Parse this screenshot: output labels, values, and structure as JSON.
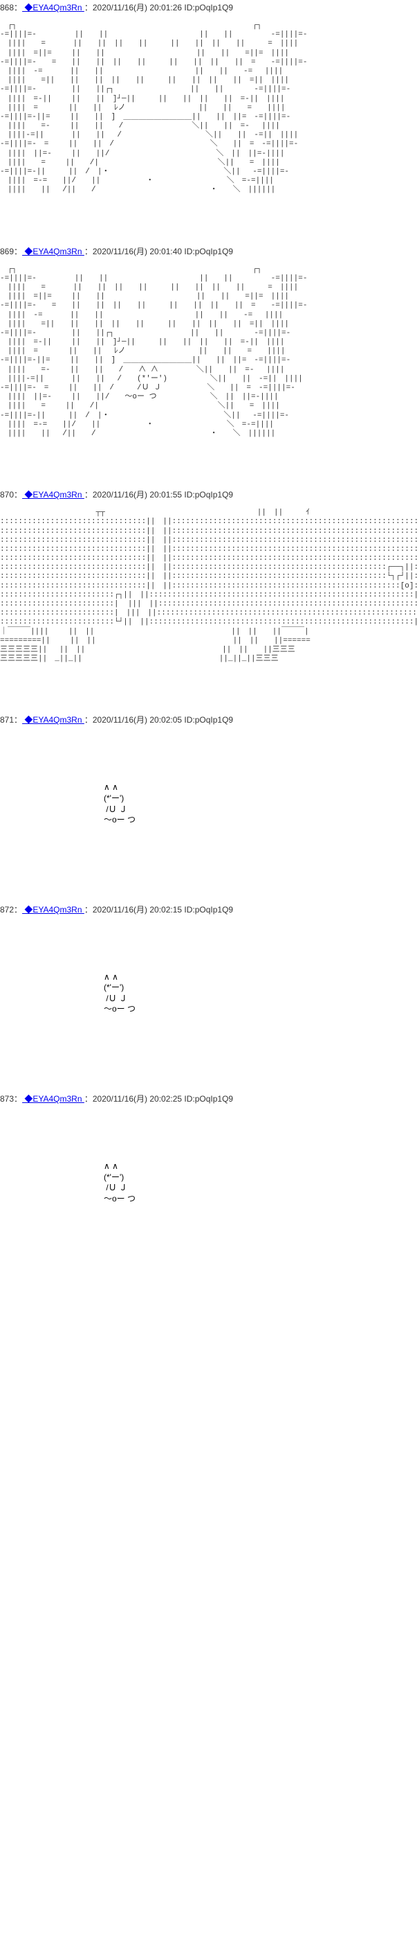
{
  "posts": [
    {
      "num": "868",
      "sep": "：",
      "trip": "◆EYA4Qm3Rn",
      "meta": "：2020/11/16(月) 20:01:26 ID:pOqIp1Q9",
      "type": "building1",
      "body": ""
    },
    {
      "num": "869",
      "sep": "：",
      "trip": "◆EYA4Qm3Rn",
      "meta": "：2020/11/16(月) 20:01:40 ID:pOqIp1Q9",
      "type": "building2",
      "body": ""
    },
    {
      "num": "870",
      "sep": "：",
      "trip": "◆EYA4Qm3Rn",
      "meta": "：2020/11/16(月) 20:01:55 ID:pOqIp1Q9",
      "type": "building3",
      "body": ""
    },
    {
      "num": "871",
      "sep": "：",
      "trip": "◆EYA4Qm3Rn",
      "meta": "：2020/11/16(月) 20:02:05 ID:pOqIp1Q9",
      "type": "cat",
      "body": "∧ ∧\n(*'ー')\n /Ｕ Ｊ\n～oー つ"
    },
    {
      "num": "872",
      "sep": "：",
      "trip": "◆EYA4Qm3Rn",
      "meta": "：2020/11/16(月) 20:02:15 ID:pOqIp1Q9",
      "type": "cat",
      "body": "∧ ∧\n(*'ー')\n /Ｕ Ｊ\n～oー つ"
    },
    {
      "num": "873",
      "sep": "：",
      "trip": "◆EYA4Qm3Rn",
      "meta": "：2020/11/16(月) 20:02:25 ID:pOqIp1Q9",
      "type": "cat",
      "body": "∧ ∧\n(*'ー')\n /Ｕ Ｊ\n～oー つ"
    }
  ],
  "aa": {
    "building1": "　┌┐　　　　　　　　　　　　　　　　　　　　　　　　　　　　　　　┌┐\n-=||||=-　　　　　||　　||　　　　　　　　　　　　||　　||　　　　　-=||||=-\n　||||　　=　　　 ||　　||　||　　||　　　||　　||　||　　||　　　=　||||\n　||||　=||=　　 ||　　||　　　　　　　　　　　　||　　||　　=||=　||||\n-=||||=-　　=　　||　　||　||　　||　　　||　　||　||　　||　=　　-=||||=-\n　||||　-=　　　 ||　　||　　　　　　　　　　　　||　　||　　-=　 ||||\n　||||　　=||　　||　　||　||　　||　　　||　　||　||　　||　=||　||||\n-=||||=-　　　　 ||　　||┌┐　　　　　　　　　　||　　||　　　　-=||||=-\n　||||　=-||　　 ||　　||　]┘─||　　　||　　||　||　　||　=-||　||||\n　||||　=　　　　||　　||　 ﾚノ　　　　　　　　　 ||　　||　　=　　||||\n-=||||=-||=　　 ||　　||　]　＿＿＿＿＿＿＿＿＿||　　||　||=　-=||||=-\n　||||　　=-　　 ||　　||　　/　　　　　　　　　＼||　　||　=-　 ||||\n　||||-=||　　　 ||　　||　 /　　　　　　　　　　　＼||　　||　-=||　||||\n-=||||=-　=　　 ||　　||　/　　　　　　　　　　　　 ＼　　||　=　-=||||=-\n　||||　||=-　　 ||　　||/　　　　　　　　　　　　　　＼　||　||=-||||\n　||||　　=　　 ||　　/|　　　　　　　　　　　　　　　 ＼||　　=　||||\n-=||||=-||　　　||　/　|・　　　　　　　　　　　　　　　＼||　 -=||||=-\n　||||　=-=　　||/　　||　　　　　　・　　　　　　　　　 ＼　=-=||||\n　||||　　||　 /||　　/　　　　　　　　　　　　　　　・　　＼　||||||",
    "building2": "　┌┐　　　　　　　　　　　　　　　　　　　　　　　　　　　　　　　┌┐\n-=||||=-　　　　　||　　||　　　　　　　　　　　　||　　||　　　　　-=||||=-\n　||||　　=　　　 ||　　||　||　　||　　　||　　||　||　　||　　　=　||||\n　||||　=||=　　 ||　　||　　　　　　　　　　　　||　　||　　=||=　||||\n-=||||=-　　=　　||　　||　||　　||　　　||　　||　||　　||　=　　-=||||=-\n　||||　-=　　　 ||　　||　　　　　　　　　　　　||　　||　　-=　 ||||\n　||||　　=||　　||　　||　||　　||　　　||　　||　||　　||　=||　||||\n-=||||=-　　　　 ||　　||┌┐　　　　　　　　　　||　　||　　　　-=||||=-\n　||||　=-||　　 ||　　||　]┘─||　　　||　　||　||　　||　=-||　||||\n　||||　=　　　　||　　||　 ﾚノ　　　　　　　　　 ||　　||　　=　　||||\n-=||||=-||=　　 ||　　||　]　＿＿＿＿＿＿＿＿＿||　　||　||=　-=||||=-\n　||||　　=-　　 ||　　||　　/　　∧ ∧　　　　　＼||　　||　=-　 ||||\n　||||-=||　　　 ||　　||　 /　　(*'ー')　　　　　 ＼||　　||　-=||　||||\n-=||||=-　=　　 ||　　||　/　　　/Ｕ Ｊ　　　　　　＼　　||　=　-=||||=-\n　||||　||=-　　 ||　　||/　　～oー つ　　　　　　　＼　||　||=-||||\n　||||　　=　　 ||　　/|　　　　　　　　　　　　　　　 ＼||　　=　||||\n-=||||=-||　　　||　/　|・　　　　　　　　　　　　　　　＼||　 -=||||=-\n　||||　=-=　　||/　　||　　　　　　・　　　　　　　　　 ＼　=-=||||\n　||||　　||　 /||　　/　　　　　　　　　　　　　　　・　　＼　||||||",
    "building3": "　　　　　　　　　　　　 ┬┬　　　　　　　　　　　　　　　　　　　　||　||　　　ｲ\n::::::::::::::::::::::::::::::::||　||::::::::::::::::::::::::::::::::::::::::::::::::::::::::::||　||:::::┣|\n::::::::::::::::::::::::::::::::||　||::::::::::::::::::::::::::::::::::::::::::::::::::::::::::||　||:::::┣|\n::::::::::::::::::::::::::::::::||　||::::::::::::::::::::::::::::::::::::::::::::::::::::::::::||　||:::::┣|\n::::::::::::::::::::::::::::::::||　||::::::::::::::::::::::::::::::::::::::::::::::::::::::::::||　||:::::　レ\n::::::::::::::::::::::::::::::::||　||::::::::::::::::::::::::::::::::::::::::::::::::::::::::::||　||::::::::::\n::::::::::::::::::::::::::::::::||　||:::::::::::::::::::::::::::::::::::::::::::::::┌──┐||::::::::::\n::::::::::::::::::::::::::::::::||　||:::::::::::::::::::::::::::::::::::::::::::::::└┐┌┘||::::::::::\n::::::::::::::::::::::::::::::::||　||::::::::::::::::::::::::::::::::::::::::::::::::::[o]::||　||::::::::::\n:::::::::::::::::::::::::┌┐||　||::::::::::::::::::::::::::::::::::::::::::::::::::::::::::||　||::::::::::\n:::::::::::::::::::::::::|  |||　||::::::::::::::::::::::::::::::::::::::::::::::::::::::::::||　||::::::::::\n:::::::::::::::::::::::::|　|||　||::::::::::::::::::::::::::::::::::::::::::::::::::::::::::||　||::::::::::\n:::::::::::::::::::::::::└┘||　||::::::::::::::::::::::::::::::::::::::::::::::::::::::::::||　||::::::::::\n｜￣￣￣||||　　 ||　||　　　　　　　　　　　　　　　　　　||　||　　||￣￣￣|\n=========||　　 ||　||　　　　　　　　　　　　　　　　　　||　||　　||======\n三三三三三||　 ||　||　　　　　　　　　　　　　　　　　　||　||　　||三三三\n三三三三三||　_||_||　　　　　　　　　　　　　　　　　　||_||_||三三三"
  }
}
